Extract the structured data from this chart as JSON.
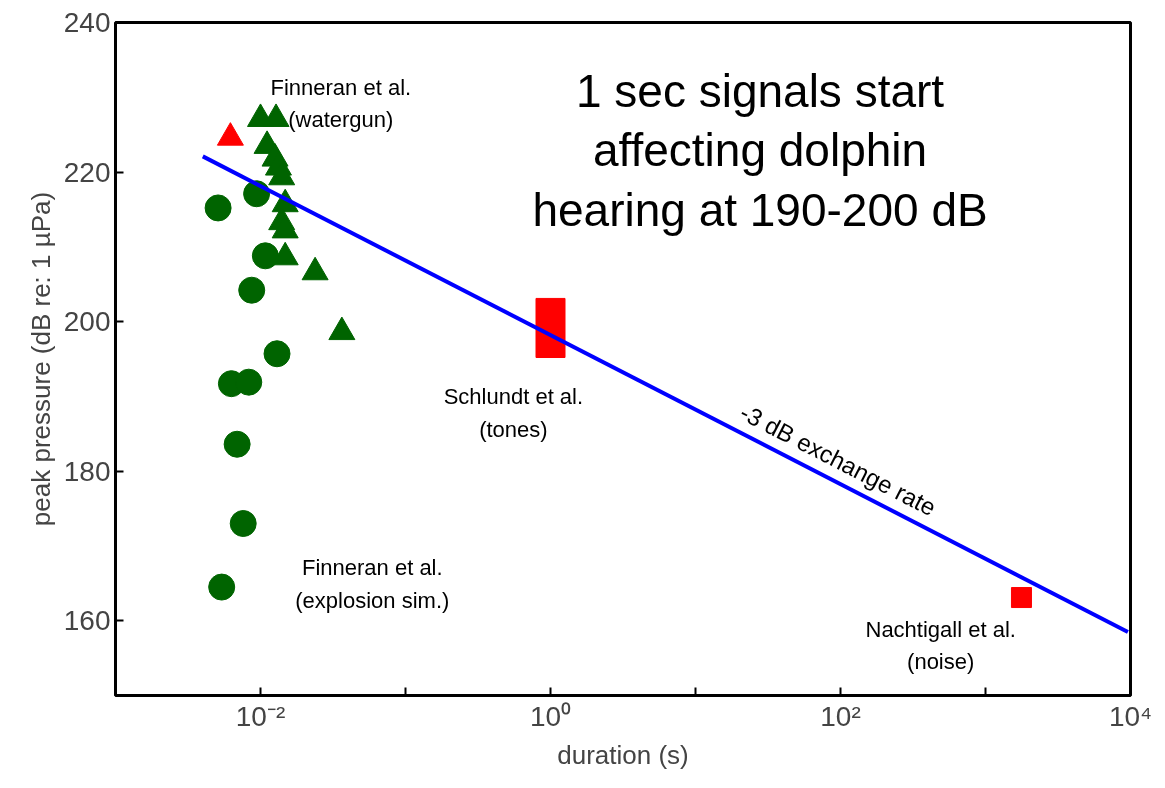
{
  "chart_data": {
    "type": "scatter",
    "xlabel": "duration (s)",
    "ylabel": "peak pressure (dB re: 1 µPa)",
    "log": "x",
    "grid": false,
    "xlim": [
      0.001,
      10000
    ],
    "ylim": [
      150,
      240
    ],
    "xticks": [
      {
        "value": 0.001,
        "label": null
      },
      {
        "value": 0.01,
        "label": "10⁻²"
      },
      {
        "value": 0.1,
        "label": null
      },
      {
        "value": 1,
        "label": "10⁰"
      },
      {
        "value": 10,
        "label": null
      },
      {
        "value": 100,
        "label": "10²"
      },
      {
        "value": 1000,
        "label": null
      },
      {
        "value": 10000,
        "label": "10⁴"
      }
    ],
    "yticks": [
      160,
      180,
      200,
      220,
      240
    ],
    "series": [
      {
        "marker": "triangle",
        "color": "#006400",
        "x": [
          0.01,
          0.0128,
          0.0111,
          0.0126,
          0.0133,
          0.014,
          0.0148,
          0.014,
          0.0148,
          0.0148,
          0.0238,
          0.0364
        ],
        "values": [
          227.1,
          227.1,
          223.5,
          221.8,
          220.6,
          219.3,
          215.7,
          213.3,
          212.2,
          208.6,
          206.6,
          198.6
        ]
      },
      {
        "marker": "circle",
        "color": "#006400",
        "x": [
          0.0094,
          0.0051,
          0.0108,
          0.0087,
          0.013,
          0.0063,
          0.0083,
          0.0069,
          0.0076,
          0.0054
        ],
        "values": [
          217.1,
          215.2,
          208.8,
          204.2,
          195.7,
          191.7,
          191.9,
          183.6,
          173.0,
          164.5
        ]
      },
      {
        "marker": "triangle",
        "color": "#ff0000",
        "x": [
          0.0062
        ],
        "values": [
          224.6
        ]
      },
      {
        "type": "bar",
        "color": "#ff0000",
        "x": [
          1
        ],
        "base": [
          195.2
        ],
        "values": [
          7.9
        ]
      },
      {
        "marker": "square",
        "color": "#ff0000",
        "x": [
          1770
        ],
        "values": [
          163.1
        ]
      },
      {
        "type": "line",
        "name": "-3 dB exchange rate",
        "color": "#0000ff",
        "x": [
          0.004,
          9600
        ],
        "values": [
          222.1,
          158.5
        ]
      }
    ],
    "annotations": [
      "Finneran et al.\n(watergun)",
      "Finneran et al.\n(explosion sim.)",
      "Schlundt et al.\n(tones)",
      "Nachtigall et al.\n(noise)",
      "1 sec signals start\naffecting dolphin\nhearing at 190-200 dB"
    ]
  }
}
